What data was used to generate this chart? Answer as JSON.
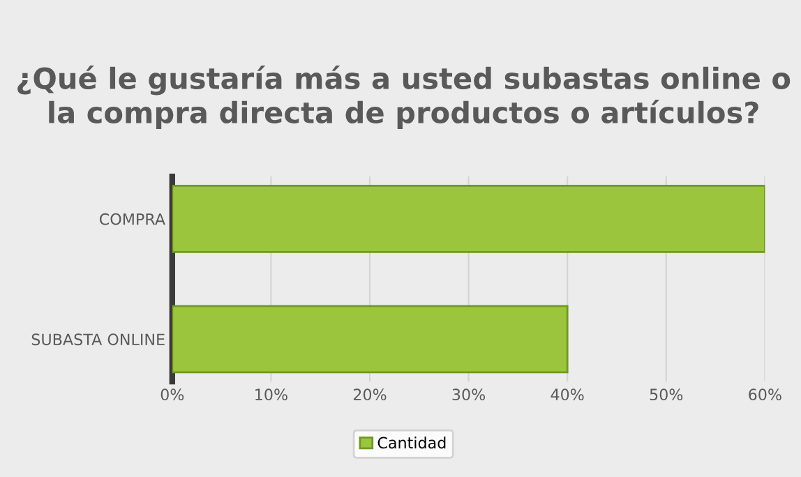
{
  "chart_data": {
    "type": "bar",
    "orientation": "horizontal",
    "title": "¿Qué le gustaría más a usted subastas online o la compra directa de productos o artículos?",
    "categories": [
      "COMPRA",
      "SUBASTA ONLINE"
    ],
    "series": [
      {
        "name": "Cantidad",
        "color": "#9bc53d",
        "values": [
          60,
          40
        ]
      }
    ],
    "xlim": [
      0,
      60
    ],
    "xticks": [
      {
        "value": 0,
        "label": "0%"
      },
      {
        "value": 10,
        "label": "10%"
      },
      {
        "value": 20,
        "label": "20%"
      },
      {
        "value": 30,
        "label": "30%"
      },
      {
        "value": 40,
        "label": "40%"
      },
      {
        "value": 50,
        "label": "50%"
      },
      {
        "value": 60,
        "label": "60%"
      }
    ],
    "grid": "x",
    "legend": "bottom"
  }
}
